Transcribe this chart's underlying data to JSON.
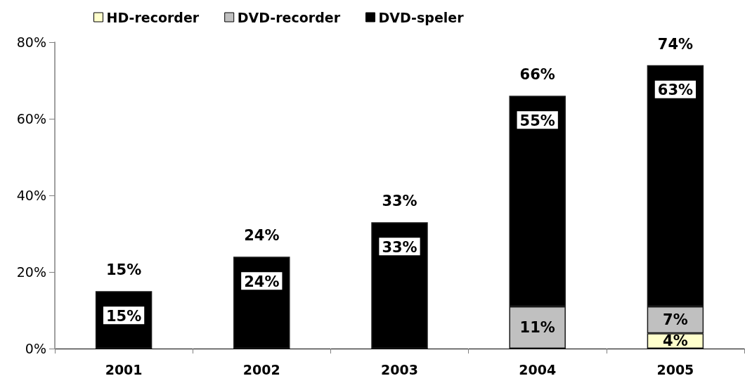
{
  "chart_data": {
    "type": "bar",
    "stacked": true,
    "legend": "top",
    "grid": false,
    "categories": [
      "2001",
      "2002",
      "2003",
      "2004",
      "2005"
    ],
    "series": [
      {
        "name": "HD-recorder",
        "color": "#ffffcc",
        "values": [
          null,
          null,
          null,
          null,
          4
        ],
        "value_labels": [
          null,
          null,
          null,
          null,
          "4%"
        ]
      },
      {
        "name": "DVD-recorder",
        "color": "#c0c0c0",
        "values": [
          null,
          null,
          null,
          11,
          7
        ],
        "value_labels": [
          null,
          null,
          null,
          "11%",
          "7%"
        ]
      },
      {
        "name": "DVD-speler",
        "color": "#000000",
        "values": [
          15,
          24,
          33,
          55,
          63
        ],
        "value_labels": [
          "15%",
          "24%",
          "33%",
          "55%",
          "63%"
        ]
      }
    ],
    "totals": [
      "15%",
      "24%",
      "33%",
      "66%",
      "74%"
    ],
    "ylim": [
      0,
      80
    ],
    "yticks": [
      {
        "value": 0,
        "label": "0%"
      },
      {
        "value": 20,
        "label": "20%"
      },
      {
        "value": 40,
        "label": "40%"
      },
      {
        "value": 60,
        "label": "60%"
      },
      {
        "value": 80,
        "label": "80%"
      }
    ]
  }
}
